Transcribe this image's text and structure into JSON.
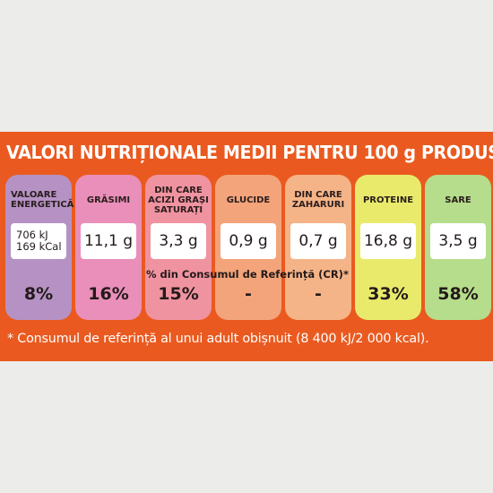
{
  "title": "VALORI NUTRIȚIONALE MEDII PENTRU 100 g PRODUS",
  "columns": [
    {
      "header": "VALOARE\nENERGETICĂ",
      "value": "706 kJ\n169 kCal",
      "percent": "8%",
      "color": "#b592c3"
    },
    {
      "header": "GRĂSIMI",
      "value": "11,1 g",
      "percent": "16%",
      "color": "#e98fb9"
    },
    {
      "header": "DIN CARE\nACIZI GRAȘI\nSATURAȚI",
      "value": "3,3 g",
      "percent": "15%",
      "color": "#f093a0"
    },
    {
      "header": "GLUCIDE",
      "value": "0,9 g",
      "percent": "-",
      "color": "#f3a47a"
    },
    {
      "header": "DIN CARE\nZAHARURI",
      "value": "0,7 g",
      "percent": "-",
      "color": "#f5b487"
    },
    {
      "header": "PROTEINE",
      "value": "16,8 g",
      "percent": "33%",
      "color": "#e9ea6b"
    },
    {
      "header": "SARE",
      "value": "3,5 g",
      "percent": "58%",
      "color": "#b5dd8b"
    }
  ],
  "reference_label": "% din Consumul de Referință (CR)*",
  "footnote": "* Consumul de referință al unui adult obișnuit (8 400 kJ/2 000 kcal).",
  "colors": {
    "panel": "#ea5a20",
    "background": "#ececea"
  }
}
